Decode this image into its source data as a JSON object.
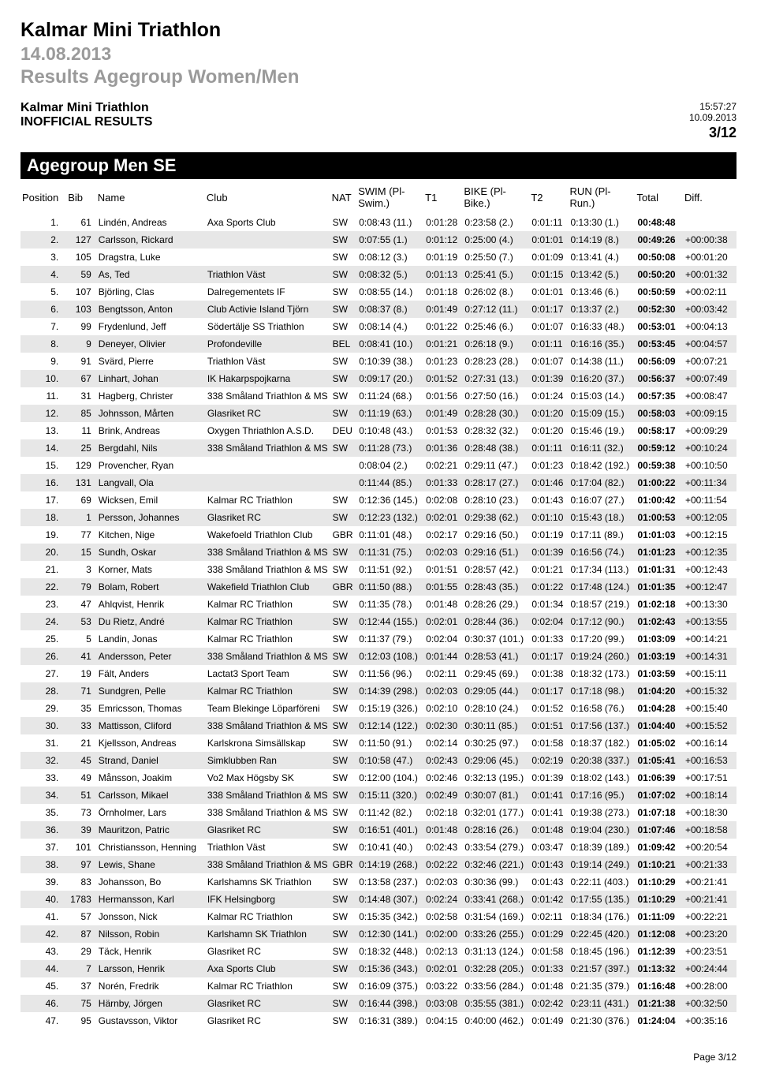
{
  "header": {
    "title": "Kalmar Mini Triathlon",
    "date": "14.08.2013",
    "subtitle": "Results Agegroup Women/Men",
    "left1": "Kalmar Mini Triathlon",
    "left2": "INOFFICIAL RESULTS",
    "time": "15:57:27",
    "printdate": "10.09.2013",
    "page_frac": "3/12"
  },
  "section": {
    "title": "Agegroup Men SE"
  },
  "columns": {
    "pos": "Position",
    "bib": "Bib",
    "name": "Name",
    "club": "Club",
    "nat": "NAT",
    "swim": "SWIM (Pl-Swim.)",
    "t1": "T1",
    "bike": "BIKE (Pl-Bike.)",
    "t2": "T2",
    "run": "RUN (Pl-Run.)",
    "total": "Total",
    "diff": "Diff."
  },
  "rows": [
    {
      "pos": "1.",
      "bib": "61",
      "name": "Lindén, Andreas",
      "club": "Axa Sports Club",
      "nat": "SW",
      "swim": "0:08:43 (11.)",
      "t1": "0:01:28",
      "bike": "0:23:58 (2.)",
      "t2": "0:01:11",
      "run": "0:13:30 (1.)",
      "total": "00:48:48",
      "diff": ""
    },
    {
      "pos": "2.",
      "bib": "127",
      "name": "Carlsson, Rickard",
      "club": "",
      "nat": "SW",
      "swim": "0:07:55 (1.)",
      "t1": "0:01:12",
      "bike": "0:25:00 (4.)",
      "t2": "0:01:01",
      "run": "0:14:19 (8.)",
      "total": "00:49:26",
      "diff": "+00:00:38"
    },
    {
      "pos": "3.",
      "bib": "105",
      "name": "Dragstra, Luke",
      "club": "",
      "nat": "SW",
      "swim": "0:08:12 (3.)",
      "t1": "0:01:19",
      "bike": "0:25:50 (7.)",
      "t2": "0:01:09",
      "run": "0:13:41 (4.)",
      "total": "00:50:08",
      "diff": "+00:01:20"
    },
    {
      "pos": "4.",
      "bib": "59",
      "name": "As, Ted",
      "club": "Triathlon Väst",
      "nat": "SW",
      "swim": "0:08:32 (5.)",
      "t1": "0:01:13",
      "bike": "0:25:41 (5.)",
      "t2": "0:01:15",
      "run": "0:13:42 (5.)",
      "total": "00:50:20",
      "diff": "+00:01:32"
    },
    {
      "pos": "5.",
      "bib": "107",
      "name": "Björling, Clas",
      "club": "Dalregementets IF",
      "nat": "SW",
      "swim": "0:08:55 (14.)",
      "t1": "0:01:18",
      "bike": "0:26:02 (8.)",
      "t2": "0:01:01",
      "run": "0:13:46 (6.)",
      "total": "00:50:59",
      "diff": "+00:02:11"
    },
    {
      "pos": "6.",
      "bib": "103",
      "name": "Bengtsson, Anton",
      "club": "Club Activie Island Tjörn",
      "nat": "SW",
      "swim": "0:08:37 (8.)",
      "t1": "0:01:49",
      "bike": "0:27:12 (11.)",
      "t2": "0:01:17",
      "run": "0:13:37 (2.)",
      "total": "00:52:30",
      "diff": "+00:03:42"
    },
    {
      "pos": "7.",
      "bib": "99",
      "name": "Frydenlund, Jeff",
      "club": "Södertälje SS Triathlon",
      "nat": "SW",
      "swim": "0:08:14 (4.)",
      "t1": "0:01:22",
      "bike": "0:25:46 (6.)",
      "t2": "0:01:07",
      "run": "0:16:33 (48.)",
      "total": "00:53:01",
      "diff": "+00:04:13"
    },
    {
      "pos": "8.",
      "bib": "9",
      "name": "Deneyer, Olivier",
      "club": "Profondeville",
      "nat": "BEL",
      "swim": "0:08:41 (10.)",
      "t1": "0:01:21",
      "bike": "0:26:18 (9.)",
      "t2": "0:01:11",
      "run": "0:16:16 (35.)",
      "total": "00:53:45",
      "diff": "+00:04:57"
    },
    {
      "pos": "9.",
      "bib": "91",
      "name": "Svärd, Pierre",
      "club": "Triathlon Väst",
      "nat": "SW",
      "swim": "0:10:39 (38.)",
      "t1": "0:01:23",
      "bike": "0:28:23 (28.)",
      "t2": "0:01:07",
      "run": "0:14:38 (11.)",
      "total": "00:56:09",
      "diff": "+00:07:21"
    },
    {
      "pos": "10.",
      "bib": "67",
      "name": "Linhart, Johan",
      "club": "IK Hakarpspojkarna",
      "nat": "SW",
      "swim": "0:09:17 (20.)",
      "t1": "0:01:52",
      "bike": "0:27:31 (13.)",
      "t2": "0:01:39",
      "run": "0:16:20 (37.)",
      "total": "00:56:37",
      "diff": "+00:07:49"
    },
    {
      "pos": "11.",
      "bib": "31",
      "name": "Hagberg, Christer",
      "club": "338 Småland Triathlon & MS",
      "nat": "SW",
      "swim": "0:11:24 (68.)",
      "t1": "0:01:56",
      "bike": "0:27:50 (16.)",
      "t2": "0:01:24",
      "run": "0:15:03 (14.)",
      "total": "00:57:35",
      "diff": "+00:08:47"
    },
    {
      "pos": "12.",
      "bib": "85",
      "name": "Johnsson, Mårten",
      "club": "Glasriket RC",
      "nat": "SW",
      "swim": "0:11:19 (63.)",
      "t1": "0:01:49",
      "bike": "0:28:28 (30.)",
      "t2": "0:01:20",
      "run": "0:15:09 (15.)",
      "total": "00:58:03",
      "diff": "+00:09:15"
    },
    {
      "pos": "13.",
      "bib": "11",
      "name": "Brink, Andreas",
      "club": "Oxygen Thriathlon A.S.D.",
      "nat": "DEU",
      "swim": "0:10:48 (43.)",
      "t1": "0:01:53",
      "bike": "0:28:32 (32.)",
      "t2": "0:01:20",
      "run": "0:15:46 (19.)",
      "total": "00:58:17",
      "diff": "+00:09:29"
    },
    {
      "pos": "14.",
      "bib": "25",
      "name": "Bergdahl, Nils",
      "club": "338 Småland Triathlon & MS",
      "nat": "SW",
      "swim": "0:11:28 (73.)",
      "t1": "0:01:36",
      "bike": "0:28:48 (38.)",
      "t2": "0:01:11",
      "run": "0:16:11 (32.)",
      "total": "00:59:12",
      "diff": "+00:10:24"
    },
    {
      "pos": "15.",
      "bib": "129",
      "name": "Provencher, Ryan",
      "club": "",
      "nat": "",
      "swim": "0:08:04 (2.)",
      "t1": "0:02:21",
      "bike": "0:29:11 (47.)",
      "t2": "0:01:23",
      "run": "0:18:42 (192.)",
      "total": "00:59:38",
      "diff": "+00:10:50"
    },
    {
      "pos": "16.",
      "bib": "131",
      "name": "Langvall, Ola",
      "club": "",
      "nat": "",
      "swim": "0:11:44 (85.)",
      "t1": "0:01:33",
      "bike": "0:28:17 (27.)",
      "t2": "0:01:46",
      "run": "0:17:04 (82.)",
      "total": "01:00:22",
      "diff": "+00:11:34"
    },
    {
      "pos": "17.",
      "bib": "69",
      "name": "Wicksen, Emil",
      "club": "Kalmar RC Triathlon",
      "nat": "SW",
      "swim": "0:12:36 (145.)",
      "t1": "0:02:08",
      "bike": "0:28:10 (23.)",
      "t2": "0:01:43",
      "run": "0:16:07 (27.)",
      "total": "01:00:42",
      "diff": "+00:11:54"
    },
    {
      "pos": "18.",
      "bib": "1",
      "name": "Persson, Johannes",
      "club": "Glasriket RC",
      "nat": "SW",
      "swim": "0:12:23 (132.)",
      "t1": "0:02:01",
      "bike": "0:29:38 (62.)",
      "t2": "0:01:10",
      "run": "0:15:43 (18.)",
      "total": "01:00:53",
      "diff": "+00:12:05"
    },
    {
      "pos": "19.",
      "bib": "77",
      "name": "Kitchen, Nige",
      "club": "Wakefoeld Triathlon Club",
      "nat": "GBR",
      "swim": "0:11:01 (48.)",
      "t1": "0:02:17",
      "bike": "0:29:16 (50.)",
      "t2": "0:01:19",
      "run": "0:17:11 (89.)",
      "total": "01:01:03",
      "diff": "+00:12:15"
    },
    {
      "pos": "20.",
      "bib": "15",
      "name": "Sundh, Oskar",
      "club": "338 Småland Triathlon & MS",
      "nat": "SW",
      "swim": "0:11:31 (75.)",
      "t1": "0:02:03",
      "bike": "0:29:16 (51.)",
      "t2": "0:01:39",
      "run": "0:16:56 (74.)",
      "total": "01:01:23",
      "diff": "+00:12:35"
    },
    {
      "pos": "21.",
      "bib": "3",
      "name": "Korner, Mats",
      "club": "338 Småland Triathlon & MS",
      "nat": "SW",
      "swim": "0:11:51 (92.)",
      "t1": "0:01:51",
      "bike": "0:28:57 (42.)",
      "t2": "0:01:21",
      "run": "0:17:34 (113.)",
      "total": "01:01:31",
      "diff": "+00:12:43"
    },
    {
      "pos": "22.",
      "bib": "79",
      "name": "Bolam, Robert",
      "club": "Wakefield Triathlon Club",
      "nat": "GBR",
      "swim": "0:11:50 (88.)",
      "t1": "0:01:55",
      "bike": "0:28:43 (35.)",
      "t2": "0:01:22",
      "run": "0:17:48 (124.)",
      "total": "01:01:35",
      "diff": "+00:12:47"
    },
    {
      "pos": "23.",
      "bib": "47",
      "name": "Ahlqvist, Henrik",
      "club": "Kalmar RC Triathlon",
      "nat": "SW",
      "swim": "0:11:35 (78.)",
      "t1": "0:01:48",
      "bike": "0:28:26 (29.)",
      "t2": "0:01:34",
      "run": "0:18:57 (219.)",
      "total": "01:02:18",
      "diff": "+00:13:30"
    },
    {
      "pos": "24.",
      "bib": "53",
      "name": "Du Rietz, André",
      "club": "Kalmar RC Triathlon",
      "nat": "SW",
      "swim": "0:12:44 (155.)",
      "t1": "0:02:01",
      "bike": "0:28:44 (36.)",
      "t2": "0:02:04",
      "run": "0:17:12 (90.)",
      "total": "01:02:43",
      "diff": "+00:13:55"
    },
    {
      "pos": "25.",
      "bib": "5",
      "name": "Landin, Jonas",
      "club": "Kalmar RC Triathlon",
      "nat": "SW",
      "swim": "0:11:37 (79.)",
      "t1": "0:02:04",
      "bike": "0:30:37 (101.)",
      "t2": "0:01:33",
      "run": "0:17:20 (99.)",
      "total": "01:03:09",
      "diff": "+00:14:21"
    },
    {
      "pos": "26.",
      "bib": "41",
      "name": "Andersson, Peter",
      "club": "338 Småland Triathlon & MS",
      "nat": "SW",
      "swim": "0:12:03 (108.)",
      "t1": "0:01:44",
      "bike": "0:28:53 (41.)",
      "t2": "0:01:17",
      "run": "0:19:24 (260.)",
      "total": "01:03:19",
      "diff": "+00:14:31"
    },
    {
      "pos": "27.",
      "bib": "19",
      "name": "Fält, Anders",
      "club": "Lactat3 Sport Team",
      "nat": "SW",
      "swim": "0:11:56 (96.)",
      "t1": "0:02:11",
      "bike": "0:29:45 (69.)",
      "t2": "0:01:38",
      "run": "0:18:32 (173.)",
      "total": "01:03:59",
      "diff": "+00:15:11"
    },
    {
      "pos": "28.",
      "bib": "71",
      "name": "Sundgren, Pelle",
      "club": "Kalmar RC Triathlon",
      "nat": "SW",
      "swim": "0:14:39 (298.)",
      "t1": "0:02:03",
      "bike": "0:29:05 (44.)",
      "t2": "0:01:17",
      "run": "0:17:18 (98.)",
      "total": "01:04:20",
      "diff": "+00:15:32"
    },
    {
      "pos": "29.",
      "bib": "35",
      "name": "Emricsson, Thomas",
      "club": "Team Blekinge Löparföreni",
      "nat": "SW",
      "swim": "0:15:19 (326.)",
      "t1": "0:02:10",
      "bike": "0:28:10 (24.)",
      "t2": "0:01:52",
      "run": "0:16:58 (76.)",
      "total": "01:04:28",
      "diff": "+00:15:40"
    },
    {
      "pos": "30.",
      "bib": "33",
      "name": "Mattisson, Cliford",
      "club": "338 Småland Triathlon & MS",
      "nat": "SW",
      "swim": "0:12:14 (122.)",
      "t1": "0:02:30",
      "bike": "0:30:11 (85.)",
      "t2": "0:01:51",
      "run": "0:17:56 (137.)",
      "total": "01:04:40",
      "diff": "+00:15:52"
    },
    {
      "pos": "31.",
      "bib": "21",
      "name": "Kjellsson, Andreas",
      "club": "Karlskrona Simsällskap",
      "nat": "SW",
      "swim": "0:11:50 (91.)",
      "t1": "0:02:14",
      "bike": "0:30:25 (97.)",
      "t2": "0:01:58",
      "run": "0:18:37 (182.)",
      "total": "01:05:02",
      "diff": "+00:16:14"
    },
    {
      "pos": "32.",
      "bib": "45",
      "name": "Strand, Daniel",
      "club": "Simklubben Ran",
      "nat": "SW",
      "swim": "0:10:58 (47.)",
      "t1": "0:02:43",
      "bike": "0:29:06 (45.)",
      "t2": "0:02:19",
      "run": "0:20:38 (337.)",
      "total": "01:05:41",
      "diff": "+00:16:53"
    },
    {
      "pos": "33.",
      "bib": "49",
      "name": "Månsson, Joakim",
      "club": "Vo2 Max Högsby SK",
      "nat": "SW",
      "swim": "0:12:00 (104.)",
      "t1": "0:02:46",
      "bike": "0:32:13 (195.)",
      "t2": "0:01:39",
      "run": "0:18:02 (143.)",
      "total": "01:06:39",
      "diff": "+00:17:51"
    },
    {
      "pos": "34.",
      "bib": "51",
      "name": "Carlsson, Mikael",
      "club": "338 Småland Triathlon & MS",
      "nat": "SW",
      "swim": "0:15:11 (320.)",
      "t1": "0:02:49",
      "bike": "0:30:07 (81.)",
      "t2": "0:01:41",
      "run": "0:17:16 (95.)",
      "total": "01:07:02",
      "diff": "+00:18:14"
    },
    {
      "pos": "35.",
      "bib": "73",
      "name": "Örnholmer, Lars",
      "club": "338 Småland Triathlon & MS",
      "nat": "SW",
      "swim": "0:11:42 (82.)",
      "t1": "0:02:18",
      "bike": "0:32:01 (177.)",
      "t2": "0:01:41",
      "run": "0:19:38 (273.)",
      "total": "01:07:18",
      "diff": "+00:18:30"
    },
    {
      "pos": "36.",
      "bib": "39",
      "name": "Mauritzon, Patric",
      "club": "Glasriket RC",
      "nat": "SW",
      "swim": "0:16:51 (401.)",
      "t1": "0:01:48",
      "bike": "0:28:16 (26.)",
      "t2": "0:01:48",
      "run": "0:19:04 (230.)",
      "total": "01:07:46",
      "diff": "+00:18:58"
    },
    {
      "pos": "37.",
      "bib": "101",
      "name": "Christiansson, Henning",
      "club": "Triathlon Väst",
      "nat": "SW",
      "swim": "0:10:41 (40.)",
      "t1": "0:02:43",
      "bike": "0:33:54 (279.)",
      "t2": "0:03:47",
      "run": "0:18:39 (189.)",
      "total": "01:09:42",
      "diff": "+00:20:54"
    },
    {
      "pos": "38.",
      "bib": "97",
      "name": "Lewis, Shane",
      "club": "338 Småland Triathlon & MS",
      "nat": "GBR",
      "swim": "0:14:19 (268.)",
      "t1": "0:02:22",
      "bike": "0:32:46 (221.)",
      "t2": "0:01:43",
      "run": "0:19:14 (249.)",
      "total": "01:10:21",
      "diff": "+00:21:33"
    },
    {
      "pos": "39.",
      "bib": "83",
      "name": "Johansson, Bo",
      "club": "Karlshamns SK Triathlon",
      "nat": "SW",
      "swim": "0:13:58 (237.)",
      "t1": "0:02:03",
      "bike": "0:30:36 (99.)",
      "t2": "0:01:43",
      "run": "0:22:11 (403.)",
      "total": "01:10:29",
      "diff": "+00:21:41"
    },
    {
      "pos": "40.",
      "bib": "1783",
      "name": "Hermansson, Karl",
      "club": "IFK Helsingborg",
      "nat": "SW",
      "swim": "0:14:48 (307.)",
      "t1": "0:02:24",
      "bike": "0:33:41 (268.)",
      "t2": "0:01:42",
      "run": "0:17:55 (135.)",
      "total": "01:10:29",
      "diff": "+00:21:41"
    },
    {
      "pos": "41.",
      "bib": "57",
      "name": "Jonsson, Nick",
      "club": "Kalmar RC Triathlon",
      "nat": "SW",
      "swim": "0:15:35 (342.)",
      "t1": "0:02:58",
      "bike": "0:31:54 (169.)",
      "t2": "0:02:11",
      "run": "0:18:34 (176.)",
      "total": "01:11:09",
      "diff": "+00:22:21"
    },
    {
      "pos": "42.",
      "bib": "87",
      "name": "Nilsson, Robin",
      "club": "Karlshamn SK Triathlon",
      "nat": "SW",
      "swim": "0:12:30 (141.)",
      "t1": "0:02:00",
      "bike": "0:33:26 (255.)",
      "t2": "0:01:29",
      "run": "0:22:45 (420.)",
      "total": "01:12:08",
      "diff": "+00:23:20"
    },
    {
      "pos": "43.",
      "bib": "29",
      "name": "Täck, Henrik",
      "club": "Glasriket RC",
      "nat": "SW",
      "swim": "0:18:32 (448.)",
      "t1": "0:02:13",
      "bike": "0:31:13 (124.)",
      "t2": "0:01:58",
      "run": "0:18:45 (196.)",
      "total": "01:12:39",
      "diff": "+00:23:51"
    },
    {
      "pos": "44.",
      "bib": "7",
      "name": "Larsson, Henrik",
      "club": "Axa Sports Club",
      "nat": "SW",
      "swim": "0:15:36 (343.)",
      "t1": "0:02:01",
      "bike": "0:32:28 (205.)",
      "t2": "0:01:33",
      "run": "0:21:57 (397.)",
      "total": "01:13:32",
      "diff": "+00:24:44"
    },
    {
      "pos": "45.",
      "bib": "37",
      "name": "Norén, Fredrik",
      "club": "Kalmar RC Triathlon",
      "nat": "SW",
      "swim": "0:16:09 (375.)",
      "t1": "0:03:22",
      "bike": "0:33:56 (284.)",
      "t2": "0:01:48",
      "run": "0:21:35 (379.)",
      "total": "01:16:48",
      "diff": "+00:28:00"
    },
    {
      "pos": "46.",
      "bib": "75",
      "name": "Härnby, Jörgen",
      "club": "Glasriket RC",
      "nat": "SW",
      "swim": "0:16:44 (398.)",
      "t1": "0:03:08",
      "bike": "0:35:55 (381.)",
      "t2": "0:02:42",
      "run": "0:23:11 (431.)",
      "total": "01:21:38",
      "diff": "+00:32:50"
    },
    {
      "pos": "47.",
      "bib": "95",
      "name": "Gustavsson, Viktor",
      "club": "Glasriket RC",
      "nat": "SW",
      "swim": "0:16:31 (389.)",
      "t1": "0:04:15",
      "bike": "0:40:00 (462.)",
      "t2": "0:01:49",
      "run": "0:21:30 (376.)",
      "total": "01:24:04",
      "diff": "+00:35:16"
    }
  ],
  "footer": {
    "page": "Page 3/12"
  }
}
